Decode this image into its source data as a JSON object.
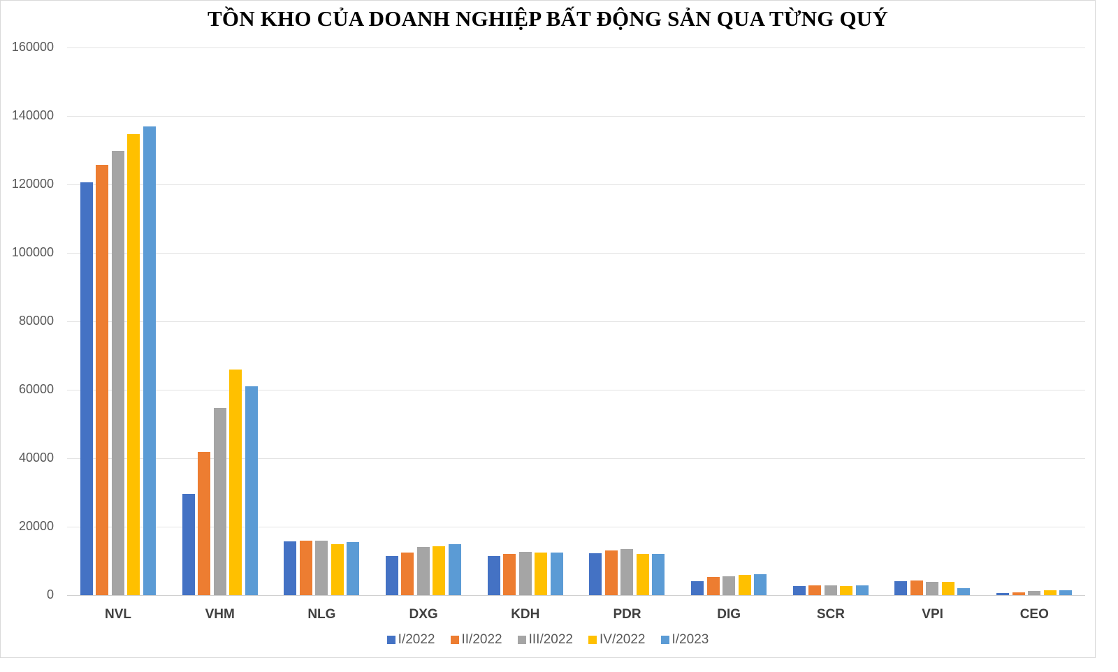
{
  "chart_data": {
    "type": "bar",
    "title": "TỒN KHO CỦA DOANH NGHIỆP BẤT ĐỘNG SẢN QUA TỪNG QUÝ",
    "xlabel": "",
    "ylabel": "",
    "ylim": [
      0,
      160000
    ],
    "yticks": [
      0,
      20000,
      40000,
      60000,
      80000,
      100000,
      120000,
      140000,
      160000
    ],
    "grid": true,
    "legend_position": "bottom",
    "categories": [
      "NVL",
      "VHM",
      "NLG",
      "DXG",
      "KDH",
      "PDR",
      "DIG",
      "SCR",
      "VPI",
      "CEO"
    ],
    "series": [
      {
        "name": "I/2022",
        "color": "#4472C4",
        "values": [
          120600,
          29600,
          15800,
          11400,
          11400,
          12200,
          4000,
          2700,
          4100,
          700
        ]
      },
      {
        "name": "II/2022",
        "color": "#ED7D31",
        "values": [
          125700,
          41800,
          16000,
          12500,
          12000,
          13000,
          5300,
          2800,
          4200,
          900
        ]
      },
      {
        "name": "III/2022",
        "color": "#A5A5A5",
        "values": [
          129800,
          54700,
          16000,
          14000,
          12600,
          13400,
          5600,
          2800,
          3900,
          1300
        ]
      },
      {
        "name": "IV/2022",
        "color": "#FFC000",
        "values": [
          134700,
          65900,
          14900,
          14300,
          12400,
          12100,
          6000,
          2700,
          3800,
          1400
        ]
      },
      {
        "name": "I/2023",
        "color": "#5B9BD5",
        "values": [
          136900,
          61000,
          15600,
          15000,
          12500,
          12100,
          6100,
          2800,
          2000,
          1500
        ]
      }
    ]
  }
}
